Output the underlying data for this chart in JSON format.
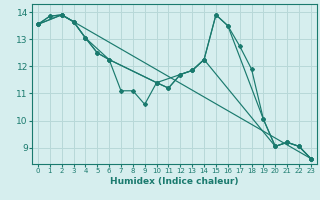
{
  "xlabel": "Humidex (Indice chaleur)",
  "xlim": [
    -0.5,
    23.5
  ],
  "ylim": [
    8.4,
    14.3
  ],
  "xticks": [
    0,
    1,
    2,
    3,
    4,
    5,
    6,
    7,
    8,
    9,
    10,
    11,
    12,
    13,
    14,
    15,
    16,
    17,
    18,
    19,
    20,
    21,
    22,
    23
  ],
  "yticks": [
    9,
    10,
    11,
    12,
    13,
    14
  ],
  "bg_color": "#d6eeee",
  "grid_color": "#b8d8d8",
  "line_color": "#1a7a6e",
  "line1_x": [
    0,
    1,
    2,
    3,
    4,
    5,
    6,
    7,
    8,
    9,
    10,
    11,
    12,
    13,
    14,
    15,
    16,
    17,
    18,
    19,
    20,
    21,
    22,
    23
  ],
  "line1_y": [
    13.55,
    13.85,
    13.9,
    13.65,
    13.05,
    12.5,
    12.25,
    11.1,
    11.1,
    10.6,
    11.4,
    11.2,
    11.7,
    11.85,
    12.25,
    13.9,
    13.5,
    12.75,
    11.9,
    10.05,
    9.05,
    9.2,
    9.05,
    8.6
  ],
  "line2_x": [
    0,
    1,
    2,
    3,
    4,
    5,
    6,
    10,
    11,
    12,
    13,
    14,
    20,
    21,
    22,
    23
  ],
  "line2_y": [
    13.55,
    13.85,
    13.9,
    13.65,
    13.05,
    12.5,
    12.25,
    11.4,
    11.2,
    11.7,
    11.85,
    12.25,
    9.05,
    9.2,
    9.05,
    8.6
  ],
  "line3_x": [
    0,
    2,
    3,
    4,
    6,
    10,
    13,
    14,
    15,
    16,
    19,
    20,
    21,
    22,
    23
  ],
  "line3_y": [
    13.55,
    13.9,
    13.65,
    13.05,
    12.25,
    11.4,
    11.85,
    12.25,
    13.9,
    13.5,
    10.05,
    9.05,
    9.2,
    9.05,
    8.6
  ],
  "line4_x": [
    0,
    2,
    23
  ],
  "line4_y": [
    13.55,
    13.9,
    8.6
  ]
}
